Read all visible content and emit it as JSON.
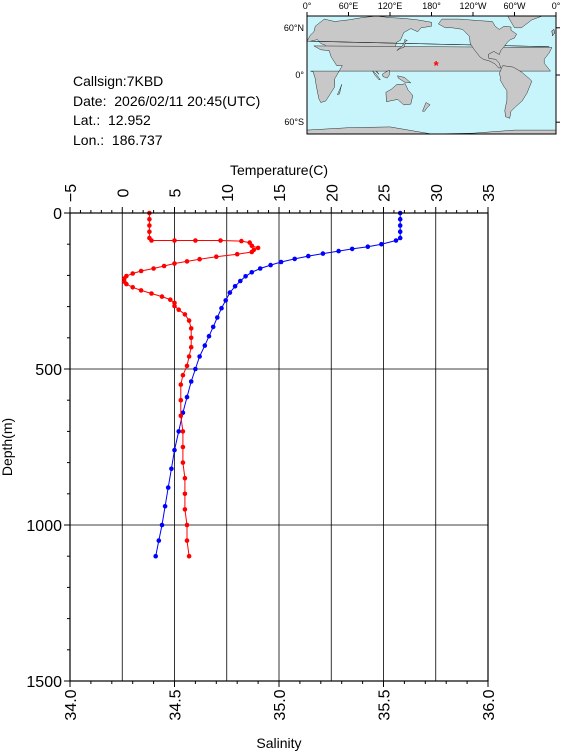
{
  "info": {
    "callsign": "Callsign:7KBD",
    "date": "Date:  2026/02/11 20:45(UTC)",
    "lat": "Lat.:  12.952",
    "lon": "Lon.:  186.737"
  },
  "map": {
    "top_lon_labels": [
      "0°",
      "60°E",
      "120°E",
      "180°",
      "120°W",
      "60°W",
      "0°"
    ],
    "lat_labels": [
      "60°N",
      "0°",
      "60°S"
    ],
    "station_lon": 186.737,
    "station_lat": 12.952,
    "colors": {
      "ocean": "#c8f5fb",
      "land": "#c8c8c8",
      "marker": "#ff0000"
    }
  },
  "chart_data": {
    "type": "line",
    "title": "",
    "xlabel_top": "Temperature(C)",
    "xlabel_bottom": "Salinity",
    "ylabel": "Depth(m)",
    "temperature_ticks": [
      -5,
      0,
      5,
      10,
      15,
      20,
      25,
      30,
      35
    ],
    "salinity_ticks": [
      "34.0",
      "34.5",
      "35.0",
      "35.5",
      "36.0"
    ],
    "depth_ticks": [
      0,
      500,
      1000,
      1500
    ],
    "xlim_temperature": [
      -5,
      35
    ],
    "xlim_salinity": [
      34.0,
      36.0
    ],
    "ylim_depth": [
      0,
      1500
    ],
    "series": [
      {
        "color": "#0000ff",
        "axis": "temperature",
        "points": [
          [
            26.6,
            0
          ],
          [
            26.6,
            20
          ],
          [
            26.6,
            40
          ],
          [
            26.6,
            60
          ],
          [
            26.6,
            80
          ],
          [
            26.2,
            88
          ],
          [
            24.8,
            100
          ],
          [
            23.5,
            108
          ],
          [
            22.0,
            115
          ],
          [
            20.7,
            122
          ],
          [
            19.2,
            130
          ],
          [
            17.8,
            138
          ],
          [
            16.5,
            147
          ],
          [
            15.2,
            157
          ],
          [
            14.2,
            167
          ],
          [
            13.2,
            178
          ],
          [
            12.4,
            190
          ],
          [
            11.8,
            203
          ],
          [
            11.3,
            218
          ],
          [
            10.8,
            235
          ],
          [
            10.3,
            255
          ],
          [
            9.9,
            280
          ],
          [
            9.5,
            305
          ],
          [
            9.1,
            335
          ],
          [
            8.7,
            365
          ],
          [
            8.3,
            395
          ],
          [
            7.9,
            425
          ],
          [
            7.4,
            460
          ],
          [
            7.0,
            500
          ],
          [
            6.6,
            540
          ],
          [
            6.2,
            590
          ],
          [
            5.8,
            640
          ],
          [
            5.4,
            700
          ],
          [
            5.0,
            760
          ],
          [
            4.7,
            820
          ],
          [
            4.4,
            880
          ],
          [
            4.1,
            940
          ],
          [
            3.8,
            1000
          ],
          [
            3.5,
            1050
          ],
          [
            3.2,
            1100
          ]
        ]
      },
      {
        "color": "#ff0000",
        "axis": "salinity",
        "points": [
          [
            34.38,
            0
          ],
          [
            34.38,
            20
          ],
          [
            34.38,
            40
          ],
          [
            34.38,
            60
          ],
          [
            34.38,
            80
          ],
          [
            34.39,
            88
          ],
          [
            34.5,
            88
          ],
          [
            34.6,
            88
          ],
          [
            34.72,
            88
          ],
          [
            34.82,
            90
          ],
          [
            34.86,
            95
          ],
          [
            34.87,
            105
          ],
          [
            34.9,
            112
          ],
          [
            34.88,
            118
          ],
          [
            34.87,
            125
          ],
          [
            34.8,
            132
          ],
          [
            34.7,
            140
          ],
          [
            34.62,
            148
          ],
          [
            34.56,
            155
          ],
          [
            34.5,
            162
          ],
          [
            34.45,
            170
          ],
          [
            34.4,
            178
          ],
          [
            34.34,
            186
          ],
          [
            34.3,
            194
          ],
          [
            34.27,
            202
          ],
          [
            34.26,
            210
          ],
          [
            34.26,
            220
          ],
          [
            34.27,
            228
          ],
          [
            34.3,
            238
          ],
          [
            34.34,
            248
          ],
          [
            34.39,
            258
          ],
          [
            34.44,
            268
          ],
          [
            34.48,
            278
          ],
          [
            34.5,
            288
          ],
          [
            34.5,
            298
          ],
          [
            34.52,
            310
          ],
          [
            34.55,
            325
          ],
          [
            34.57,
            345
          ],
          [
            34.58,
            370
          ],
          [
            34.58,
            400
          ],
          [
            34.58,
            430
          ],
          [
            34.57,
            460
          ],
          [
            34.56,
            490
          ],
          [
            34.54,
            520
          ],
          [
            34.53,
            550
          ],
          [
            34.53,
            600
          ],
          [
            34.53,
            650
          ],
          [
            34.54,
            700
          ],
          [
            34.54,
            750
          ],
          [
            34.54,
            800
          ],
          [
            34.55,
            850
          ],
          [
            34.55,
            900
          ],
          [
            34.55,
            950
          ],
          [
            34.56,
            1000
          ],
          [
            34.56,
            1050
          ],
          [
            34.57,
            1100
          ]
        ]
      }
    ]
  }
}
